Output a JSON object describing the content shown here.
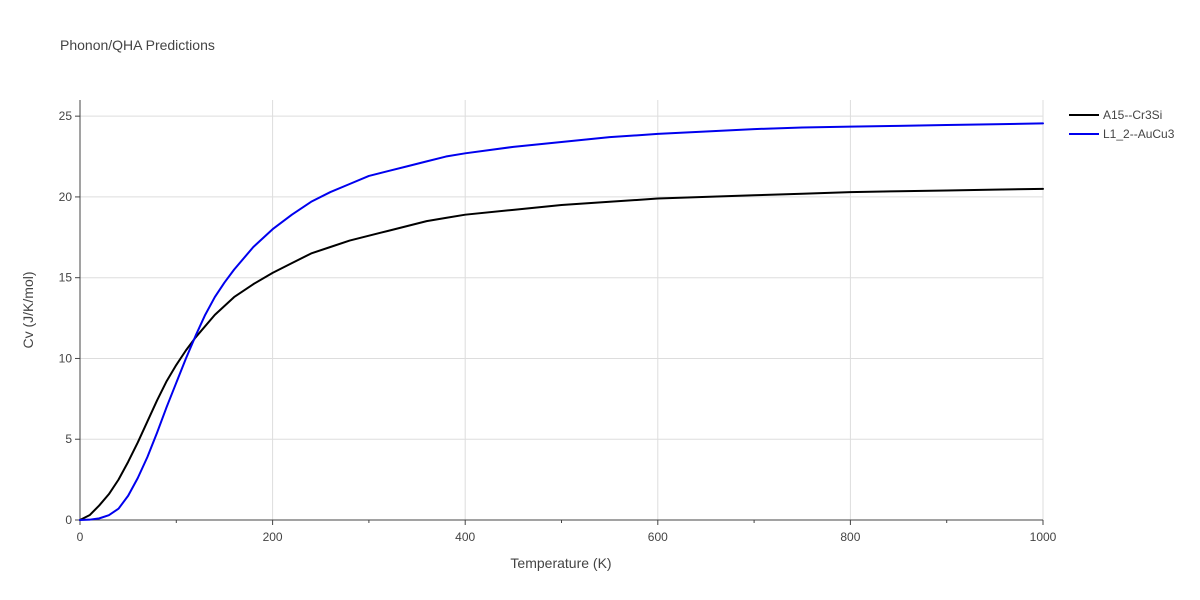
{
  "chart_data": {
    "type": "line",
    "title": "Phonon/QHA Predictions",
    "xlabel": "Temperature (K)",
    "ylabel": "Cv (J/K/mol)",
    "xlim": [
      0,
      1000
    ],
    "ylim": [
      0,
      26
    ],
    "xticks": [
      0,
      200,
      400,
      600,
      800,
      1000
    ],
    "xtick_labels": [
      "0",
      "200",
      "400",
      "600",
      "800",
      "1000"
    ],
    "xminor": [
      100,
      300,
      500,
      700,
      900
    ],
    "yticks": [
      0,
      5,
      10,
      15,
      20,
      25
    ],
    "ytick_labels": [
      "0",
      "5",
      "10",
      "15",
      "20",
      "25"
    ],
    "grid": true,
    "legend_position": "top-right",
    "series": [
      {
        "name": "A15--Cr3Si",
        "color": "#000000",
        "x": [
          0,
          10,
          20,
          30,
          40,
          50,
          60,
          70,
          80,
          90,
          100,
          110,
          120,
          140,
          160,
          180,
          200,
          220,
          240,
          260,
          280,
          300,
          320,
          340,
          360,
          380,
          400,
          450,
          500,
          550,
          600,
          650,
          700,
          750,
          800,
          850,
          900,
          950,
          1000
        ],
        "values": [
          0,
          0.3,
          0.9,
          1.6,
          2.5,
          3.6,
          4.8,
          6.1,
          7.4,
          8.6,
          9.6,
          10.5,
          11.3,
          12.7,
          13.8,
          14.6,
          15.3,
          15.9,
          16.5,
          16.9,
          17.3,
          17.6,
          17.9,
          18.2,
          18.5,
          18.7,
          18.9,
          19.2,
          19.5,
          19.7,
          19.9,
          20.0,
          20.1,
          20.2,
          20.3,
          20.35,
          20.4,
          20.45,
          20.5
        ]
      },
      {
        "name": "L1_2--AuCu3",
        "color": "#0000ee",
        "x": [
          0,
          10,
          20,
          30,
          40,
          50,
          60,
          70,
          80,
          90,
          100,
          110,
          120,
          130,
          140,
          150,
          160,
          180,
          200,
          220,
          240,
          260,
          280,
          300,
          320,
          340,
          360,
          380,
          400,
          450,
          500,
          550,
          600,
          650,
          700,
          750,
          800,
          850,
          900,
          950,
          1000
        ],
        "values": [
          0,
          0.02,
          0.1,
          0.3,
          0.7,
          1.5,
          2.6,
          3.9,
          5.4,
          7.0,
          8.5,
          10.0,
          11.4,
          12.7,
          13.8,
          14.7,
          15.5,
          16.9,
          18.0,
          18.9,
          19.7,
          20.3,
          20.8,
          21.3,
          21.6,
          21.9,
          22.2,
          22.5,
          22.7,
          23.1,
          23.4,
          23.7,
          23.9,
          24.05,
          24.2,
          24.3,
          24.35,
          24.4,
          24.45,
          24.5,
          24.55
        ]
      }
    ]
  }
}
